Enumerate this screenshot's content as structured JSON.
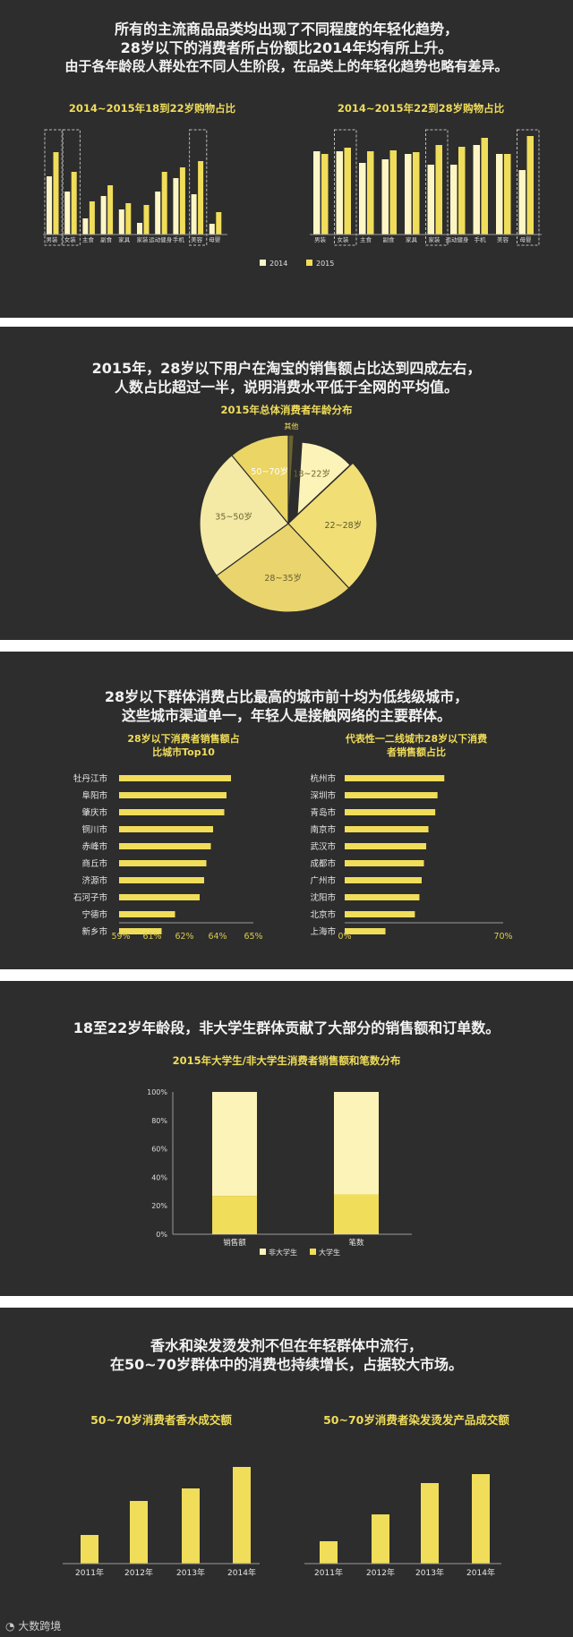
{
  "panel1": {
    "heading": [
      "所有的主流商品品类均出现了不同程度的年轻化趋势，",
      "28岁以下的消费者所占份额比2014年均有所上升。",
      "由于各年龄段人群处在不同人生阶段，在品类上的年轻化趋势也略有差异。"
    ]
  },
  "panel2": {
    "heading": [
      "2015年，28岁以下用户在淘宝的销售额占比达到四成左右，",
      "人数占比超过一半，说明消费水平低于全网的平均值。"
    ]
  },
  "panel3": {
    "heading": [
      "28岁以下群体消费占比最高的城市前十均为低线级城市，",
      "这些城市渠道单一，年轻人是接触网络的主要群体。"
    ]
  },
  "panel4": {
    "heading": [
      "18至22岁年龄段，非大学生群体贡献了大部分的销售额和订单数。"
    ]
  },
  "panel5": {
    "heading": [
      "香水和染发烫发剂不但在年轻群体中流行，",
      "在50~70岁群体中的消费也持续增长，占据较大市场。"
    ]
  },
  "watermark": "大数跨境",
  "colors": {
    "background": "#2d2d2d",
    "accent": "#f0dd5a",
    "light": "#fdf6c4",
    "cream": "#fbf3b8",
    "mid": "#e9d46e",
    "text": "#f2f2f2",
    "axis": "#9a9a9a"
  },
  "chart_data": [
    {
      "type": "bar",
      "title": "2014~2015年18到22岁购物占比",
      "categories": [
        "男装",
        "女装",
        "主食",
        "副食",
        "家具",
        "家装",
        "运动健身",
        "手机",
        "美容",
        "母婴"
      ],
      "highlighted": [
        "男装",
        "女装",
        "美容"
      ],
      "series": [
        {
          "name": "2014",
          "values": [
            65,
            48,
            18,
            43,
            28,
            13,
            48,
            63,
            45,
            12
          ]
        },
        {
          "name": "2015",
          "values": [
            92,
            70,
            37,
            55,
            35,
            33,
            70,
            75,
            82,
            25
          ]
        }
      ],
      "legend": "bottom"
    },
    {
      "type": "bar",
      "title": "2014~2015年22到28岁购物占比",
      "categories": [
        "男装",
        "女装",
        "主食",
        "副食",
        "家具",
        "家装",
        "运动健身",
        "手机",
        "美容",
        "母婴"
      ],
      "highlighted": [
        "女装",
        "家装",
        "母婴"
      ],
      "series": [
        {
          "name": "2014",
          "values": [
            93,
            93,
            80,
            84,
            90,
            78,
            78,
            100,
            90,
            72
          ]
        },
        {
          "name": "2015",
          "values": [
            90,
            97,
            93,
            94,
            92,
            100,
            98,
            108,
            90,
            110
          ]
        }
      ]
    },
    {
      "type": "pie",
      "title": "2015年总体消费者年龄分布",
      "slices": [
        {
          "label": "其他",
          "value": 1
        },
        {
          "label": "18~22岁",
          "value": 12
        },
        {
          "label": "22~28岁",
          "value": 25
        },
        {
          "label": "28~35岁",
          "value": 27
        },
        {
          "label": "35~50岁",
          "value": 24
        },
        {
          "label": "50~70岁",
          "value": 11
        }
      ]
    },
    {
      "type": "bar",
      "orientation": "horizontal",
      "title": "28岁以下消费者销售额占比城市Top10",
      "categories": [
        "牡丹江市",
        "阜阳市",
        "肇庆市",
        "铜川市",
        "赤峰市",
        "商丘市",
        "济源市",
        "石河子市",
        "宁德市",
        "新乡市"
      ],
      "values": [
        64.0,
        63.8,
        63.7,
        63.2,
        63.1,
        62.9,
        62.8,
        62.6,
        61.5,
        60.9
      ],
      "xticks": [
        "59%",
        "61%",
        "62%",
        "64%",
        "65%"
      ],
      "xlim": [
        59,
        65
      ]
    },
    {
      "type": "bar",
      "orientation": "horizontal",
      "title": "代表性一二线城市28岁以下消费者销售额占比",
      "categories": [
        "杭州市",
        "深圳市",
        "青岛市",
        "南京市",
        "武汉市",
        "成都市",
        "广州市",
        "沈阳市",
        "北京市",
        "上海市"
      ],
      "values": [
        44,
        41,
        40,
        37,
        36,
        35,
        34,
        33,
        31,
        18
      ],
      "xticks": [
        "0%",
        "70%"
      ],
      "xlim": [
        0,
        70
      ]
    },
    {
      "type": "bar",
      "stacked": true,
      "title": "2015年大学生/非大学生消费者销售额和笔数分布",
      "categories": [
        "销售额",
        "笔数"
      ],
      "series": [
        {
          "name": "大学生",
          "values": [
            27,
            28
          ]
        },
        {
          "name": "非大学生",
          "values": [
            73,
            72
          ]
        }
      ],
      "yticks": [
        "0%",
        "20%",
        "40%",
        "60%",
        "80%",
        "100%"
      ],
      "ylim": [
        0,
        100
      ]
    },
    {
      "type": "bar",
      "title": "50~70岁消费者香水成交额",
      "categories": [
        "2011年",
        "2012年",
        "2013年",
        "2014年"
      ],
      "values": [
        32,
        70,
        84,
        108
      ]
    },
    {
      "type": "bar",
      "title": "50~70岁消费者染发烫发产品成交额",
      "categories": [
        "2011年",
        "2012年",
        "2013年",
        "2014年"
      ],
      "values": [
        25,
        55,
        90,
        100
      ]
    }
  ]
}
